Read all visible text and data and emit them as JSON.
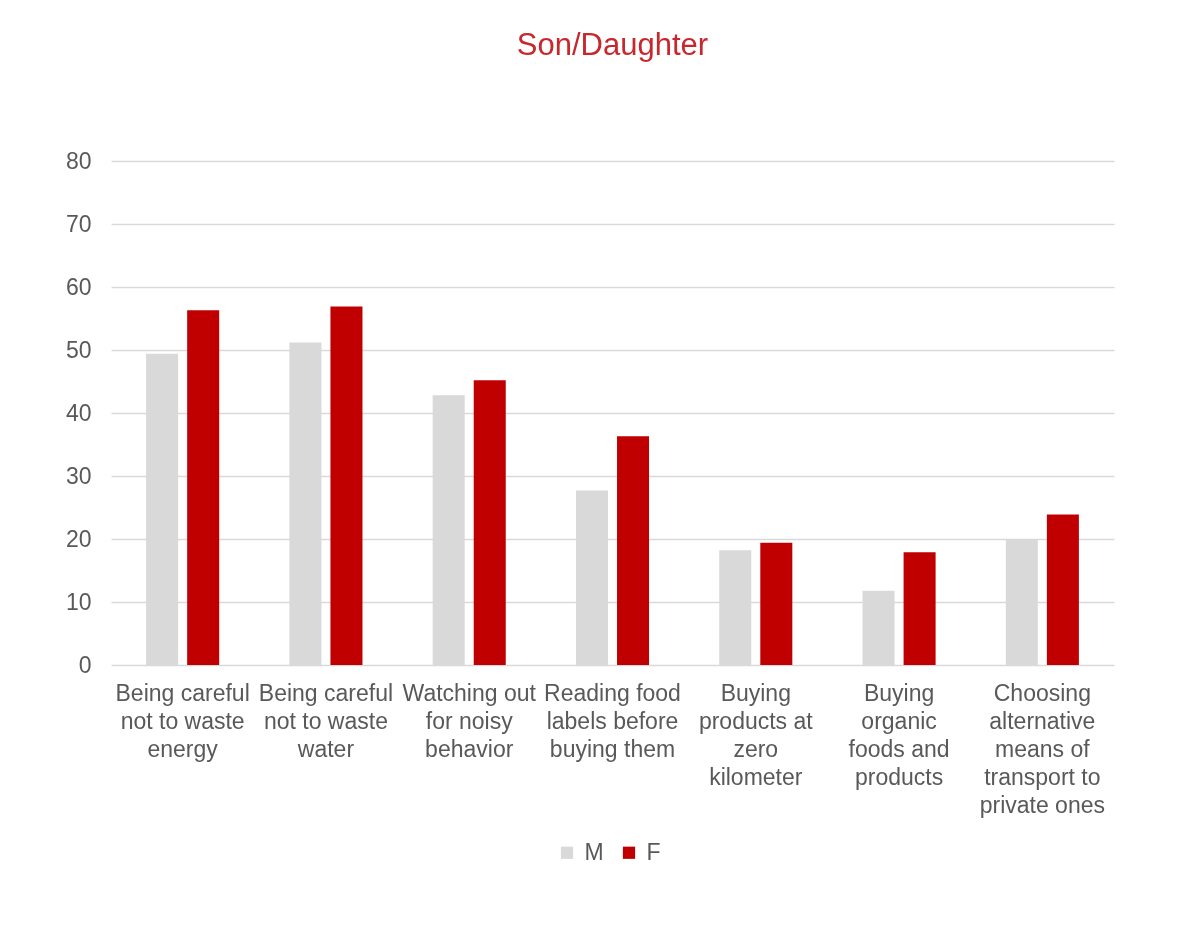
{
  "chart_data": {
    "type": "bar",
    "title": "Son/Daughter",
    "categories": [
      "Being careful not to waste energy",
      "Being careful not to waste water",
      "Watching out for noisy behavior",
      "Reading food labels before buying them",
      "Buying products at zero kilometer",
      "Buying organic foods and products",
      "Choosing alternative means of transport to private ones"
    ],
    "series": [
      {
        "name": "M",
        "color": "#d9d9d9",
        "values": [
          49.4,
          51.2,
          42.8,
          27.7,
          18.2,
          11.8,
          20.0
        ]
      },
      {
        "name": "F",
        "color": "#c00000",
        "values": [
          56.3,
          56.9,
          45.2,
          36.3,
          19.4,
          17.9,
          23.9
        ]
      }
    ],
    "ylim": [
      0,
      80
    ],
    "yticks": [
      0,
      10,
      20,
      30,
      40,
      50,
      60,
      70,
      80
    ],
    "grid": "y",
    "legend": "bottom"
  }
}
